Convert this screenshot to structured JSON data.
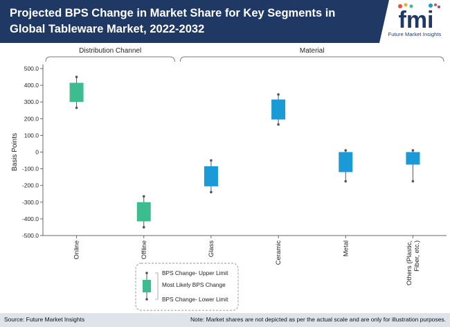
{
  "header": {
    "title": "Projected BPS Change in Market Share for Key Segments in Global Tableware Market, 2022-2032",
    "logo_text": "fmi",
    "logo_caption": "Future Market Insights"
  },
  "colors": {
    "header_bg": "#1f3864",
    "distribution_box": "#3dbd8f",
    "material_box": "#1a9ad6",
    "whisker": "#555555"
  },
  "chart_data": {
    "type": "box",
    "ylabel": "Basis Points",
    "ylim": [
      -500,
      500
    ],
    "yticks": [
      500,
      400,
      300,
      200,
      100,
      0,
      -100,
      -200,
      -300,
      -400,
      -500
    ],
    "ytick_labels": [
      "500.0",
      "400.0",
      "300.0",
      "200.0",
      "100.0",
      "0",
      "-100.0",
      "-200.0",
      "-300.0",
      "-400.0",
      "-500.0"
    ],
    "categories": [
      "Online",
      "Offline",
      "Glass",
      "Ceramic",
      "Metal",
      "Others (Plastic, Fiber, etc.)"
    ],
    "category_lines": [
      [
        "Online"
      ],
      [
        "Offline"
      ],
      [
        "Glass"
      ],
      [
        "Ceramic"
      ],
      [
        "Metal"
      ],
      [
        "Others (Plastic,",
        "Fiber, etc.)"
      ]
    ],
    "groups": [
      {
        "label": "Distribution Channel",
        "categories": [
          "Online",
          "Offline"
        ]
      },
      {
        "label": "Material",
        "categories": [
          "Glass",
          "Ceramic",
          "Metal",
          "Others (Plastic, Fiber, etc.)"
        ]
      }
    ],
    "boxes": [
      {
        "category": "Online",
        "upper": 450,
        "box_high": 415,
        "box_low": 300,
        "lower": 265,
        "group": 0
      },
      {
        "category": "Offline",
        "upper": -265,
        "box_high": -300,
        "box_low": -415,
        "lower": -450,
        "group": 0
      },
      {
        "category": "Glass",
        "upper": -50,
        "box_high": -85,
        "box_low": -205,
        "lower": -240,
        "group": 1
      },
      {
        "category": "Ceramic",
        "upper": 345,
        "box_high": 315,
        "box_low": 195,
        "lower": 165,
        "group": 1
      },
      {
        "category": "Metal",
        "upper": 10,
        "box_high": 0,
        "box_low": -120,
        "lower": -175,
        "group": 1
      },
      {
        "category": "Others (Plastic, Fiber, etc.)",
        "upper": 10,
        "box_high": 0,
        "box_low": -75,
        "lower": -175,
        "group": 1
      }
    ],
    "legend": {
      "upper": "BPS Change- Upper Limit",
      "mid": "Most Likely BPS Change",
      "lower": "BPS Change- Lower Limit"
    },
    "grid": false
  },
  "footer": {
    "source": "Source: Future Market Insights",
    "note": "Note: Market shares are not depicted as per the actual scale and are only for illustration purposes."
  }
}
